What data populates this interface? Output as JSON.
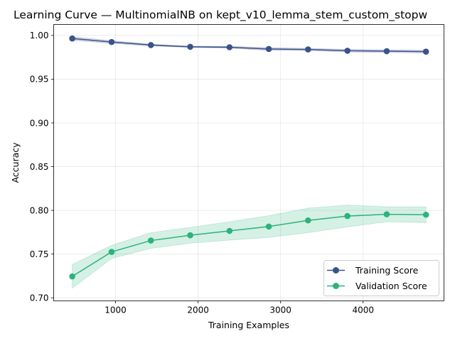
{
  "chart_data": {
    "type": "line",
    "title": "Learning Curve — MultinomialNB on kept_v10_lemma_stem_custom_stopw",
    "xlabel": "Training Examples",
    "ylabel": "Accuracy",
    "xlim": [
      250,
      4980
    ],
    "ylim": [
      0.6965,
      1.0125
    ],
    "xticks": [
      1000,
      2000,
      3000,
      4000
    ],
    "xtick_labels": [
      "1000",
      "2000",
      "3000",
      "4000"
    ],
    "yticks": [
      0.7,
      0.75,
      0.8,
      0.85,
      0.9,
      0.95,
      1.0
    ],
    "ytick_labels": [
      "0.70",
      "0.75",
      "0.80",
      "0.85",
      "0.90",
      "0.95",
      "1.00"
    ],
    "grid": true,
    "legend_position": "lower-right",
    "x": [
      475,
      952,
      1428,
      1905,
      2381,
      2857,
      3333,
      3810,
      4286,
      4762
    ],
    "series": [
      {
        "name": "Training Score",
        "color": "#3b528b",
        "values": [
          0.9965,
          0.9925,
          0.989,
          0.987,
          0.9865,
          0.9845,
          0.984,
          0.9825,
          0.982,
          0.9815
        ],
        "band_lower": [
          0.9945,
          0.991,
          0.988,
          0.9862,
          0.9855,
          0.983,
          0.9828,
          0.981,
          0.9805,
          0.98
        ],
        "band_upper": [
          0.9985,
          0.994,
          0.99,
          0.9878,
          0.9875,
          0.986,
          0.9852,
          0.984,
          0.9835,
          0.983
        ]
      },
      {
        "name": "Validation Score",
        "color": "#2db27d",
        "values": [
          0.7245,
          0.7525,
          0.7655,
          0.7715,
          0.7765,
          0.7815,
          0.7885,
          0.7935,
          0.7955,
          0.795
        ],
        "band_lower": [
          0.711,
          0.745,
          0.7565,
          0.7625,
          0.766,
          0.769,
          0.7745,
          0.781,
          0.787,
          0.786
        ],
        "band_upper": [
          0.738,
          0.76,
          0.7745,
          0.7805,
          0.787,
          0.794,
          0.8025,
          0.806,
          0.804,
          0.804
        ]
      }
    ]
  }
}
